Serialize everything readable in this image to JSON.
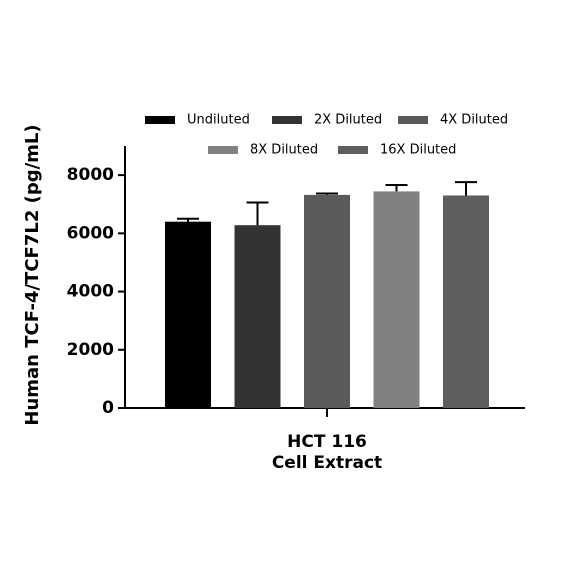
{
  "chart_data": {
    "type": "bar",
    "y_label": "Human TCF-4/TCF7L2 (pg/mL)",
    "categories": [
      "HCT 116\nCell Extract"
    ],
    "series": [
      {
        "name": "Undiluted",
        "color": "#000000",
        "values": [
          6400
        ],
        "errors": [
          100
        ]
      },
      {
        "name": "2X Diluted",
        "color": "#333333",
        "values": [
          6280
        ],
        "errors": [
          780
        ]
      },
      {
        "name": "4X Diluted",
        "color": "#5a5a5a",
        "values": [
          7320
        ],
        "errors": [
          50
        ]
      },
      {
        "name": "8X Diluted",
        "color": "#808080",
        "values": [
          7440
        ],
        "errors": [
          220
        ]
      },
      {
        "name": "16X Diluted",
        "color": "#5e5e5e",
        "values": [
          7300
        ],
        "errors": [
          460
        ]
      }
    ],
    "ylim": [
      0,
      9000
    ],
    "yticks": [
      0,
      2000,
      4000,
      6000,
      8000
    ]
  }
}
